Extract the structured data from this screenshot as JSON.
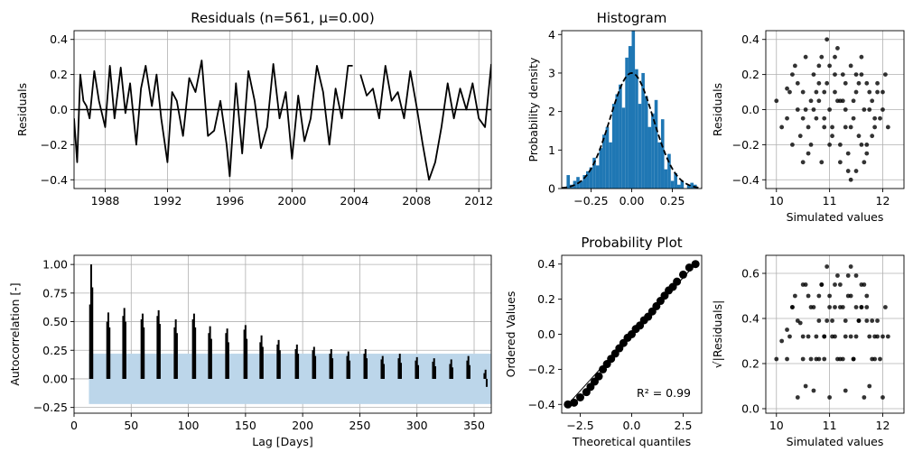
{
  "chart_data": [
    {
      "id": "residuals",
      "type": "line",
      "title": "Residuals (n=561, μ=0.00)",
      "xlabel": "",
      "ylabel": "Residuals",
      "xlim": [
        1986.0,
        2012.8
      ],
      "ylim": [
        -0.45,
        0.45
      ],
      "xticks": [
        1988,
        1992,
        1996,
        2000,
        2004,
        2008,
        2012
      ],
      "xtick_labels": [
        "1988",
        "1992",
        "1996",
        "2000",
        "2004",
        "2008",
        "2012"
      ],
      "yticks": [
        -0.4,
        -0.2,
        0.0,
        0.2,
        0.4
      ],
      "ytick_labels": [
        "−0.4",
        "−0.2",
        "0.0",
        "0.2",
        "0.4"
      ],
      "grid": true,
      "mean_line": 0.0,
      "series": [
        {
          "color": "#000000",
          "x": [
            1986.0,
            1986.2,
            1986.4,
            1986.6,
            1986.8,
            1987.0,
            1987.3,
            1987.6,
            1988.0,
            1988.3,
            1988.6,
            1989.0,
            1989.3,
            1989.6,
            1990.0,
            1990.3,
            1990.6,
            1991.0,
            1991.3,
            1991.6,
            1992.0,
            1992.3,
            1992.6,
            1993.0,
            1993.4,
            1993.8,
            1994.2,
            1994.6,
            1995.0,
            1995.4,
            1995.8,
            1996.0,
            1996.4,
            1996.8,
            1997.2,
            1997.6,
            1998.0,
            1998.4,
            1998.8,
            1999.2,
            1999.6,
            2000.0,
            2000.4,
            2000.8,
            2001.2,
            2001.6,
            2002.0,
            2002.4,
            2002.8,
            2003.2,
            2003.6,
            2003.9
          ],
          "y": [
            -0.05,
            -0.3,
            0.2,
            0.05,
            0.02,
            -0.05,
            0.22,
            0.05,
            -0.1,
            0.25,
            -0.05,
            0.24,
            -0.02,
            0.15,
            -0.2,
            0.12,
            0.25,
            0.02,
            0.2,
            -0.05,
            -0.3,
            0.1,
            0.05,
            -0.15,
            0.18,
            0.1,
            0.28,
            -0.15,
            -0.12,
            0.05,
            -0.2,
            -0.38,
            0.15,
            -0.25,
            0.22,
            0.05,
            -0.22,
            -0.1,
            0.26,
            -0.05,
            0.1,
            -0.28,
            0.08,
            -0.18,
            -0.05,
            0.25,
            0.1,
            -0.2,
            0.12,
            -0.05,
            0.25,
            0.25
          ]
        },
        {
          "color": "#000000",
          "x": [
            2004.4,
            2004.8,
            2005.2,
            2005.6,
            2006.0,
            2006.4,
            2006.8,
            2007.2,
            2007.6,
            2008.0,
            2008.4,
            2008.8,
            2009.2,
            2009.6,
            2010.0,
            2010.4,
            2010.8,
            2011.2,
            2011.6,
            2012.0,
            2012.4,
            2012.8
          ],
          "y": [
            0.2,
            0.08,
            0.12,
            -0.05,
            0.25,
            0.05,
            0.1,
            -0.05,
            0.22,
            0.02,
            -0.2,
            -0.4,
            -0.3,
            -0.1,
            0.15,
            -0.05,
            0.12,
            0.0,
            0.15,
            -0.05,
            -0.1,
            0.26
          ]
        }
      ]
    },
    {
      "id": "histogram",
      "type": "bar",
      "title": "Histogram",
      "xlabel": "",
      "ylabel": "Probability density",
      "xlim": [
        -0.43,
        0.43
      ],
      "ylim": [
        0,
        4.1
      ],
      "xticks": [
        -0.25,
        0.0,
        0.25
      ],
      "xtick_labels": [
        "−0.25",
        "0.00",
        "0.25"
      ],
      "yticks": [
        0,
        1,
        2,
        3,
        4
      ],
      "ytick_labels": [
        "0",
        "1",
        "2",
        "3",
        "4"
      ],
      "grid": false,
      "bar_color": "#1f77b4",
      "bin_width": 0.02,
      "bin_centers": [
        -0.39,
        -0.37,
        -0.35,
        -0.33,
        -0.31,
        -0.29,
        -0.27,
        -0.25,
        -0.23,
        -0.21,
        -0.19,
        -0.17,
        -0.15,
        -0.13,
        -0.11,
        -0.09,
        -0.07,
        -0.05,
        -0.03,
        -0.01,
        0.01,
        0.03,
        0.05,
        0.07,
        0.09,
        0.11,
        0.13,
        0.15,
        0.17,
        0.19,
        0.21,
        0.23,
        0.25,
        0.27,
        0.29,
        0.31,
        0.33,
        0.35,
        0.37,
        0.39
      ],
      "values": [
        0.35,
        0.1,
        0.2,
        0.3,
        0.2,
        0.35,
        0.45,
        0.55,
        0.8,
        0.6,
        1.05,
        1.4,
        1.6,
        1.2,
        2.2,
        2.45,
        2.7,
        2.1,
        3.4,
        3.7,
        4.2,
        3.1,
        2.2,
        3.0,
        2.4,
        1.6,
        1.95,
        2.3,
        1.2,
        1.8,
        0.5,
        0.9,
        0.2,
        0.4,
        0.1,
        0.2,
        0.0,
        0.1,
        0.15,
        0.1
      ],
      "density_curve": {
        "style": "dashed",
        "mean": 0.0,
        "std": 0.133
      }
    },
    {
      "id": "residuals_vs_simulated",
      "type": "scatter",
      "title": "",
      "xlabel": "Simulated values",
      "ylabel": "Residuals",
      "xlim": [
        9.8,
        12.4
      ],
      "ylim": [
        -0.45,
        0.45
      ],
      "xticks": [
        10,
        11,
        12
      ],
      "xtick_labels": [
        "10",
        "11",
        "12"
      ],
      "yticks": [
        -0.4,
        -0.2,
        0.0,
        0.2,
        0.4
      ],
      "ytick_labels": [
        "−0.4",
        "−0.2",
        "0.0",
        "0.2",
        "0.4"
      ],
      "grid": true,
      "point_color": "#000000",
      "x": [
        10.0,
        10.1,
        10.2,
        10.3,
        10.35,
        10.4,
        10.45,
        10.5,
        10.55,
        10.6,
        10.65,
        10.7,
        10.75,
        10.8,
        10.85,
        10.9,
        10.95,
        11.0,
        11.05,
        11.1,
        11.15,
        11.2,
        11.25,
        11.3,
        11.35,
        11.4,
        11.45,
        11.5,
        11.55,
        11.6,
        11.65,
        11.7,
        11.75,
        11.8,
        11.85,
        11.9,
        11.95,
        12.0,
        12.05,
        12.1,
        10.2,
        10.4,
        10.6,
        10.8,
        11.0,
        11.2,
        11.4,
        11.6,
        11.8,
        12.0,
        10.3,
        10.5,
        10.7,
        10.9,
        11.1,
        11.3,
        11.5,
        11.7,
        11.9,
        10.25,
        10.55,
        10.85,
        11.05,
        11.25,
        11.45,
        11.65,
        11.85,
        10.65,
        10.95,
        11.15,
        11.35,
        11.55,
        11.75,
        10.75,
        11.0,
        11.2,
        11.4,
        10.9,
        11.1,
        11.3,
        11.5,
        11.7,
        10.5,
        10.8,
        11.6
      ],
      "y": [
        0.05,
        -0.1,
        0.12,
        -0.2,
        0.25,
        0.0,
        -0.15,
        0.1,
        0.3,
        -0.25,
        0.05,
        0.2,
        -0.05,
        0.15,
        -0.3,
        0.1,
        0.4,
        0.0,
        -0.1,
        0.2,
        0.35,
        -0.2,
        0.05,
        0.15,
        -0.35,
        0.25,
        -0.05,
        0.1,
        -0.15,
        0.2,
        0.0,
        -0.25,
        0.1,
        0.05,
        -0.1,
        0.15,
        -0.05,
        0.1,
        0.2,
        -0.1,
        -0.05,
        0.15,
        -0.1,
        0.25,
        -0.2,
        0.05,
        -0.4,
        0.3,
        -0.15,
        0.0,
        0.2,
        -0.3,
        0.0,
        -0.05,
        0.1,
        -0.1,
        0.2,
        -0.2,
        0.1,
        0.1,
        0.0,
        0.3,
        -0.15,
        0.2,
        0.05,
        -0.3,
        -0.05,
        -0.2,
        0.15,
        0.05,
        -0.25,
        0.15,
        0.0,
        0.1,
        0.25,
        -0.3,
        -0.1,
        -0.1,
        0.3,
        0.0,
        -0.35,
        0.15,
        -0.05,
        0.05,
        -0.2
      ]
    },
    {
      "id": "autocorrelation",
      "type": "bar",
      "title": "",
      "xlabel": "Lag [Days]",
      "ylabel": "Autocorrelation [-]",
      "xlim": [
        0,
        365
      ],
      "ylim": [
        -0.3,
        1.08
      ],
      "xticks": [
        0,
        50,
        100,
        150,
        200,
        250,
        300,
        350
      ],
      "xtick_labels": [
        "0",
        "50",
        "100",
        "150",
        "200",
        "250",
        "300",
        "350"
      ],
      "yticks": [
        -0.25,
        0.0,
        0.25,
        0.5,
        0.75,
        1.0
      ],
      "ytick_labels": [
        "−0.25",
        "0.00",
        "0.25",
        "0.50",
        "0.75",
        "1.00"
      ],
      "grid": true,
      "band_color": "#bcd6ea",
      "band": [
        -0.22,
        0.22
      ],
      "lags": [
        14,
        15,
        16,
        29,
        30,
        31,
        43,
        44,
        45,
        59,
        60,
        61,
        73,
        74,
        75,
        88,
        89,
        90,
        104,
        105,
        106,
        118,
        119,
        120,
        133,
        134,
        135,
        149,
        150,
        151,
        163,
        164,
        165,
        178,
        179,
        180,
        194,
        195,
        196,
        209,
        210,
        211,
        224,
        225,
        226,
        239,
        240,
        241,
        254,
        255,
        256,
        269,
        270,
        271,
        284,
        285,
        286,
        299,
        300,
        301,
        314,
        315,
        316,
        329,
        330,
        331,
        344,
        345,
        346,
        359,
        360,
        361
      ],
      "values": [
        0.65,
        1.0,
        0.8,
        0.5,
        0.58,
        0.45,
        0.55,
        0.62,
        0.5,
        0.52,
        0.57,
        0.45,
        0.55,
        0.6,
        0.48,
        0.45,
        0.52,
        0.4,
        0.52,
        0.57,
        0.45,
        0.4,
        0.46,
        0.35,
        0.4,
        0.44,
        0.32,
        0.43,
        0.47,
        0.35,
        0.32,
        0.38,
        0.28,
        0.3,
        0.34,
        0.25,
        0.26,
        0.3,
        0.22,
        0.25,
        0.28,
        0.2,
        0.22,
        0.26,
        0.18,
        0.2,
        0.24,
        0.16,
        0.22,
        0.26,
        0.18,
        0.17,
        0.2,
        0.13,
        0.18,
        0.22,
        0.14,
        0.16,
        0.19,
        0.12,
        0.15,
        0.18,
        0.11,
        0.13,
        0.17,
        0.1,
        0.16,
        0.2,
        0.12,
        0.05,
        0.08,
        -0.07
      ]
    },
    {
      "id": "probability_plot",
      "type": "scatter",
      "title": "Probability Plot",
      "xlabel": "Theoretical quantiles",
      "ylabel": "Ordered Values",
      "xlim": [
        -3.4,
        3.4
      ],
      "ylim": [
        -0.45,
        0.45
      ],
      "xticks": [
        -2.5,
        0.0,
        2.5
      ],
      "xtick_labels": [
        "−2.5",
        "0.0",
        "2.5"
      ],
      "yticks": [
        -0.4,
        -0.2,
        0.0,
        0.2,
        0.4
      ],
      "ytick_labels": [
        "−0.4",
        "−0.2",
        "0.0",
        "0.2",
        "0.4"
      ],
      "grid": false,
      "annotation": "R² = 0.99",
      "point_color": "#000000",
      "x": [
        -3.1,
        -2.8,
        -2.5,
        -2.2,
        -2.0,
        -1.8,
        -1.6,
        -1.4,
        -1.2,
        -1.0,
        -0.8,
        -0.6,
        -0.4,
        -0.2,
        0.0,
        0.2,
        0.4,
        0.6,
        0.8,
        1.0,
        1.2,
        1.4,
        1.6,
        1.8,
        2.0,
        2.2,
        2.5,
        2.8,
        3.1
      ],
      "y": [
        -0.4,
        -0.39,
        -0.36,
        -0.33,
        -0.3,
        -0.27,
        -0.24,
        -0.2,
        -0.17,
        -0.14,
        -0.11,
        -0.08,
        -0.05,
        -0.02,
        0.0,
        0.03,
        0.05,
        0.08,
        0.1,
        0.13,
        0.16,
        0.19,
        0.22,
        0.25,
        0.27,
        0.3,
        0.34,
        0.38,
        0.4
      ]
    },
    {
      "id": "sqrt_residuals_vs_simulated",
      "type": "scatter",
      "title": "",
      "xlabel": "Simulated values",
      "ylabel": "√|Residuals|",
      "xlim": [
        9.8,
        12.4
      ],
      "ylim": [
        -0.02,
        0.68
      ],
      "xticks": [
        10,
        11,
        12
      ],
      "xtick_labels": [
        "10",
        "11",
        "12"
      ],
      "yticks": [
        0.0,
        0.2,
        0.4,
        0.6
      ],
      "ytick_labels": [
        "0.0",
        "0.2",
        "0.4",
        "0.6"
      ],
      "grid": true,
      "point_color": "#000000",
      "x": [
        10.0,
        10.1,
        10.2,
        10.3,
        10.35,
        10.4,
        10.45,
        10.5,
        10.55,
        10.6,
        10.65,
        10.7,
        10.75,
        10.8,
        10.85,
        10.9,
        10.95,
        11.0,
        11.05,
        11.1,
        11.15,
        11.2,
        11.25,
        11.3,
        11.35,
        11.4,
        11.45,
        11.5,
        11.55,
        11.6,
        11.65,
        11.7,
        11.75,
        11.8,
        11.85,
        11.9,
        11.95,
        12.0,
        12.05,
        12.1,
        10.2,
        10.4,
        10.6,
        10.8,
        11.0,
        11.2,
        11.4,
        11.6,
        11.8,
        12.0,
        10.3,
        10.5,
        10.7,
        10.9,
        11.1,
        11.3,
        11.5,
        11.7,
        11.9,
        10.25,
        10.55,
        10.85,
        11.05,
        11.25,
        11.45,
        11.65,
        11.85,
        10.65,
        10.95,
        11.15,
        11.35,
        11.55,
        11.75,
        10.75,
        11.0,
        11.2,
        11.4,
        10.9,
        11.1,
        11.3,
        11.5,
        11.7,
        10.5,
        10.8,
        11.6
      ],
      "y": [
        0.22,
        0.3,
        0.35,
        0.45,
        0.5,
        0.05,
        0.38,
        0.32,
        0.55,
        0.5,
        0.22,
        0.45,
        0.22,
        0.39,
        0.55,
        0.32,
        0.63,
        0.05,
        0.32,
        0.45,
        0.59,
        0.45,
        0.22,
        0.39,
        0.59,
        0.5,
        0.22,
        0.32,
        0.39,
        0.45,
        0.05,
        0.5,
        0.32,
        0.22,
        0.32,
        0.39,
        0.22,
        0.32,
        0.45,
        0.32,
        0.22,
        0.39,
        0.32,
        0.5,
        0.45,
        0.22,
        0.63,
        0.55,
        0.39,
        0.05,
        0.45,
        0.55,
        0.08,
        0.22,
        0.32,
        0.32,
        0.45,
        0.45,
        0.32,
        0.32,
        0.1,
        0.55,
        0.39,
        0.45,
        0.22,
        0.55,
        0.22,
        0.45,
        0.39,
        0.22,
        0.5,
        0.39,
        0.1,
        0.32,
        0.5,
        0.55,
        0.32,
        0.32,
        0.55,
        0.08,
        0.59,
        0.39,
        0.22,
        0.22,
        0.45
      ]
    }
  ]
}
